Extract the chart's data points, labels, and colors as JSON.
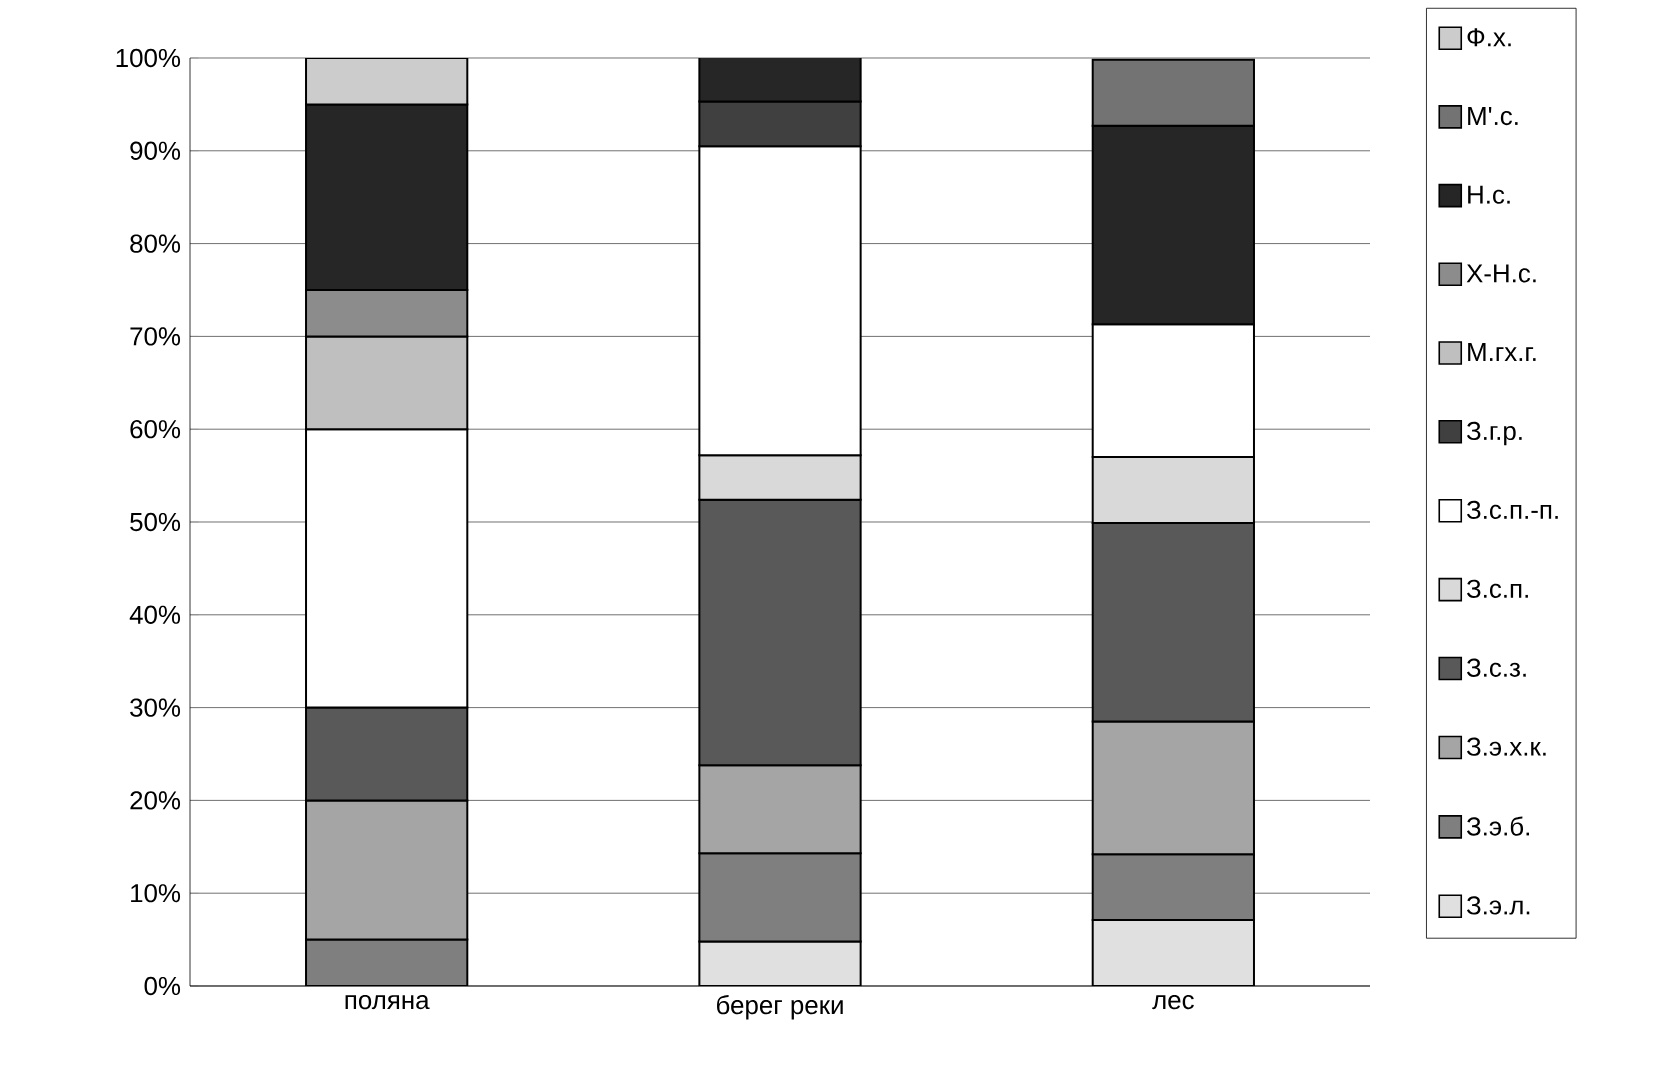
{
  "chart_data": {
    "type": "bar",
    "stacked": true,
    "categories": [
      "поляна",
      "берег реки",
      "лес"
    ],
    "series": [
      {
        "name": "З.э.л.",
        "color": "#e0e0e0",
        "values": [
          null,
          4.8,
          7.1
        ]
      },
      {
        "name": "З.э.б.",
        "color": "#7f7f7f",
        "values": [
          5,
          9.5,
          7.1
        ]
      },
      {
        "name": "З.э.х.к.",
        "color": "#a5a5a5",
        "values": [
          15,
          9.5,
          14.3
        ]
      },
      {
        "name": "З.с.з.",
        "color": "#595959",
        "values": [
          10,
          28.6,
          21.4
        ]
      },
      {
        "name": "З.с.п.",
        "color": "#d9d9d9",
        "values": [
          null,
          4.8,
          7.1
        ]
      },
      {
        "name": "З.с.п.-п.",
        "color": "#ffffff",
        "values": [
          30,
          33.3,
          14.3
        ]
      },
      {
        "name": "З.г.р.",
        "color": "#404040",
        "values": [
          null,
          4.8,
          null
        ]
      },
      {
        "name": "М.гх.г.",
        "color": "#bfbfbf",
        "values": [
          10,
          null,
          null
        ]
      },
      {
        "name": "Х-Н.с.",
        "color": "#8c8c8c",
        "values": [
          5,
          null,
          null
        ]
      },
      {
        "name": "Н.с.",
        "color": "#262626",
        "values": [
          20,
          4.8,
          21.4
        ]
      },
      {
        "name": "М'.с.",
        "color": "#737373",
        "values": [
          null,
          null,
          7.1
        ]
      },
      {
        "name": "Ф.х.",
        "color": "#cccccc",
        "values": [
          5,
          null,
          null
        ]
      }
    ],
    "ylim": [
      0,
      100
    ],
    "yticks": [
      {
        "value": 0,
        "label": "0%"
      },
      {
        "value": 10,
        "label": "10%"
      },
      {
        "value": 20,
        "label": "20%"
      },
      {
        "value": 30,
        "label": "30%"
      },
      {
        "value": 40,
        "label": "40%"
      },
      {
        "value": 50,
        "label": "50%"
      },
      {
        "value": 60,
        "label": "60%"
      },
      {
        "value": 70,
        "label": "70%"
      },
      {
        "value": 80,
        "label": "80%"
      },
      {
        "value": 90,
        "label": "90%"
      },
      {
        "value": 100,
        "label": "100%"
      }
    ],
    "grid": "y",
    "legend": "right"
  }
}
